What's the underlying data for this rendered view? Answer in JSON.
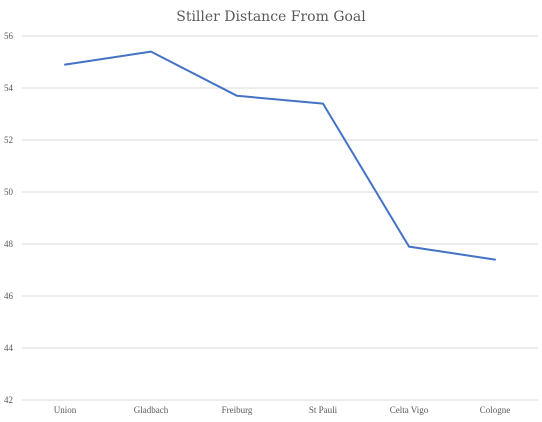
{
  "chart_data": {
    "type": "line",
    "title": "Stiller Distance From Goal",
    "xlabel": "",
    "ylabel": "",
    "categories": [
      "Union",
      "Gladbach",
      "Freiburg",
      "St Pauli",
      "Celta Vigo",
      "Cologne"
    ],
    "series": [
      {
        "values": [
          54.9,
          55.4,
          53.7,
          53.4,
          47.9,
          47.4
        ],
        "color": "#4472c4"
      }
    ],
    "ylim": [
      42,
      56
    ],
    "yticks": [
      42,
      44,
      46,
      48,
      50,
      52,
      54,
      56
    ],
    "grid": "horizontal",
    "legend": "none"
  }
}
